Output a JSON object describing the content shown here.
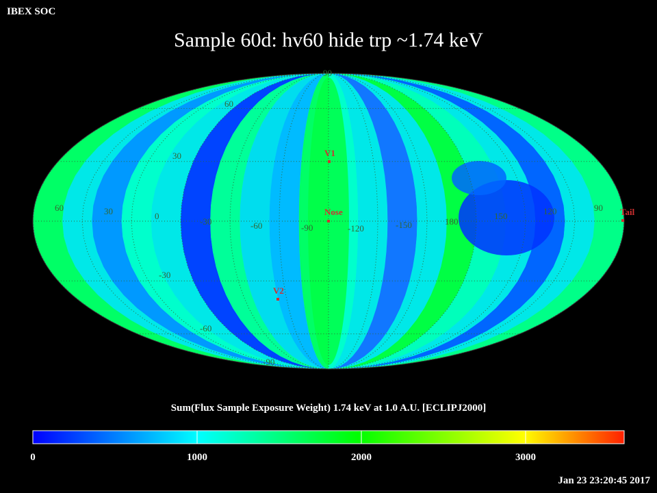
{
  "header": {
    "org": "IBEX SOC",
    "title": "Sample 60d: hv60 hide trp ~1.74 keV"
  },
  "map": {
    "projection": "mollweide",
    "frame": "ECLIPJ2000",
    "latitude_labels": [
      "90",
      "60",
      "30",
      "-30",
      "-60",
      "-90"
    ],
    "longitude_labels": [
      "60",
      "30",
      "0",
      "-30",
      "-60",
      "-90",
      "-120",
      "-150",
      "180",
      "150",
      "120",
      "90"
    ],
    "markers": [
      {
        "label": "V1",
        "color": "#d03030"
      },
      {
        "label": "Nose",
        "color": "#d03030"
      },
      {
        "label": "V2",
        "color": "#d03030"
      },
      {
        "label": "Tail",
        "color": "#d03030"
      }
    ]
  },
  "colorbar": {
    "title": "Sum(Flux Sample Exposure Weight)  1.74 keV at 1.0 A.U. [ECLIPJ2000]",
    "min": 0,
    "max": 3600,
    "ticks": [
      "0",
      "1000",
      "2000",
      "3000"
    ],
    "colors": [
      "#0000ff",
      "#00ffff",
      "#00ff00",
      "#ffff00",
      "#ff0000"
    ]
  },
  "timestamp": "Jan 23 23:20:45 2017"
}
